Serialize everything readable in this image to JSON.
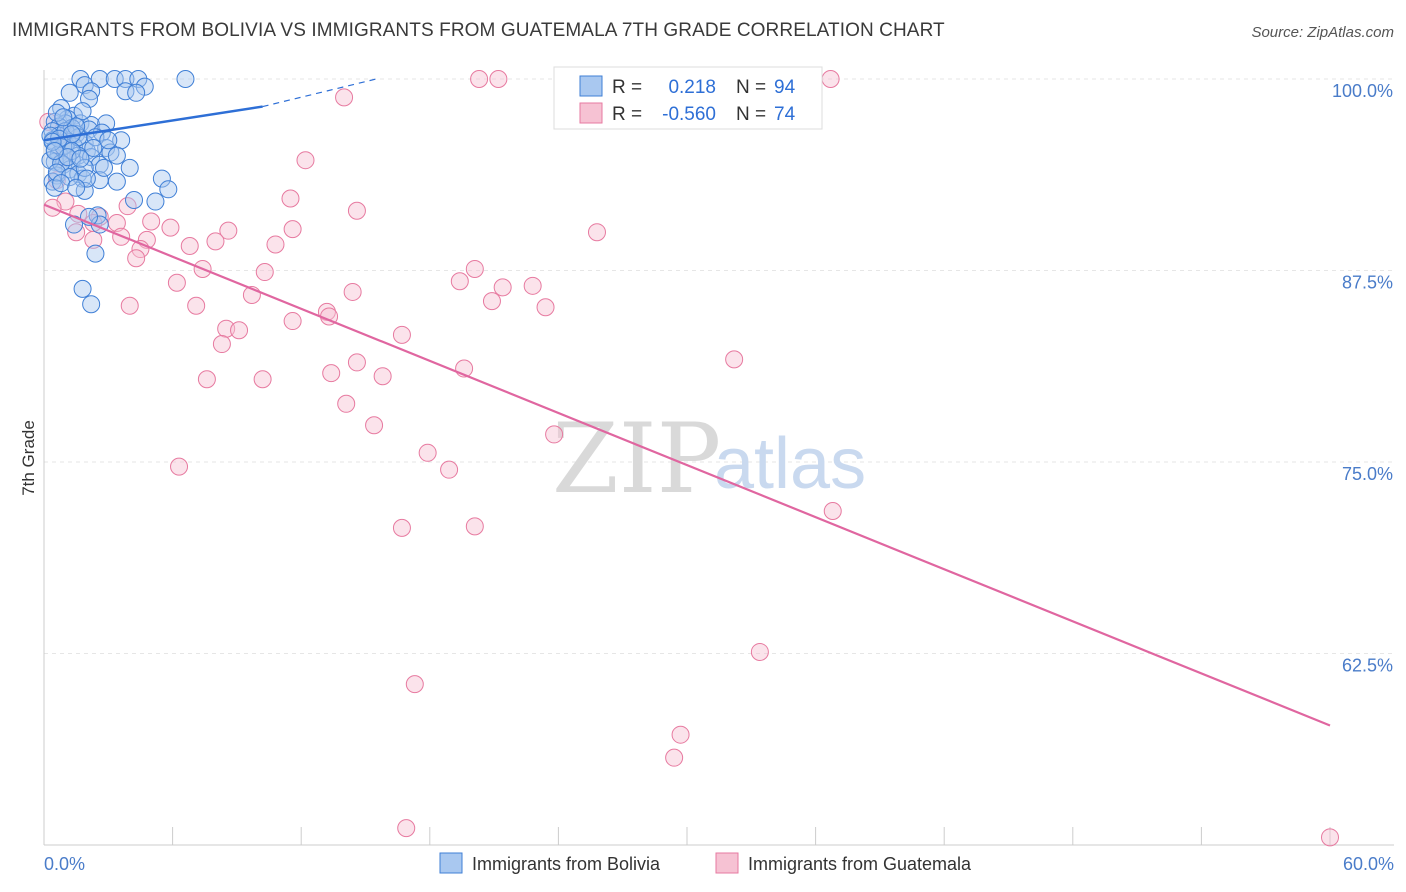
{
  "header": {
    "title": "IMMIGRANTS FROM BOLIVIA VS IMMIGRANTS FROM GUATEMALA 7TH GRADE CORRELATION CHART",
    "source": "Source: ZipAtlas.com"
  },
  "watermark": {
    "zip": "ZIP",
    "atlas": "atlas"
  },
  "colors": {
    "bolivia_stroke": "#3f7fd6",
    "bolivia_fill": "#a9c8f0",
    "guatemala_stroke": "#e77aa0",
    "guatemala_fill": "#f6c2d3",
    "bolivia_line": "#2e6fd6",
    "guatemala_line": "#e066a0"
  },
  "chart_data": {
    "type": "scatter",
    "xlabel": "",
    "ylabel": "7th Grade",
    "xlim": [
      0,
      60
    ],
    "ylim": [
      50,
      101
    ],
    "x_tick_labels": [
      "0.0%",
      "60.0%"
    ],
    "y_ticks": [
      62.5,
      75.0,
      87.5,
      100.0
    ],
    "y_tick_labels": [
      "62.5%",
      "75.0%",
      "87.5%",
      "100.0%"
    ],
    "legend": {
      "placement": "top-center",
      "entries": [
        {
          "r_label": "R =",
          "r_value": "0.218",
          "n_label": "N =",
          "n_value": "94"
        },
        {
          "r_label": "R =",
          "r_value": "-0.560",
          "n_label": "N =",
          "n_value": "74"
        }
      ]
    },
    "bottom_legend": [
      "Immigrants from Bolivia",
      "Immigrants from Guatemala"
    ],
    "series": [
      {
        "name": "Immigrants from Bolivia",
        "trend": {
          "x": [
            0,
            10.2
          ],
          "y": [
            96.0,
            98.2
          ],
          "dashed_to": [
            15.5,
            100.0
          ]
        },
        "points": [
          [
            1.7,
            100
          ],
          [
            1.9,
            99.6
          ],
          [
            2.6,
            100
          ],
          [
            2.2,
            99.2
          ],
          [
            3.3,
            100
          ],
          [
            3.8,
            100
          ],
          [
            4.4,
            100
          ],
          [
            4.7,
            99.5
          ],
          [
            6.6,
            100
          ],
          [
            3.8,
            99.2
          ],
          [
            4.3,
            99.1
          ],
          [
            1.2,
            99.1
          ],
          [
            2.1,
            98.7
          ],
          [
            0.8,
            98.1
          ],
          [
            1.4,
            97.6
          ],
          [
            1.1,
            97.4
          ],
          [
            1.7,
            97.1
          ],
          [
            0.5,
            97.2
          ],
          [
            1.0,
            97.1
          ],
          [
            2.2,
            97.0
          ],
          [
            2.9,
            97.1
          ],
          [
            0.7,
            96.9
          ],
          [
            1.3,
            96.8
          ],
          [
            2.1,
            96.7
          ],
          [
            0.4,
            96.6
          ],
          [
            2.7,
            96.5
          ],
          [
            1.5,
            96.4
          ],
          [
            0.7,
            96.3
          ],
          [
            0.4,
            96.0
          ],
          [
            1.1,
            95.9
          ],
          [
            3.6,
            96.0
          ],
          [
            1.9,
            95.8
          ],
          [
            1.0,
            95.7
          ],
          [
            1.4,
            95.6
          ],
          [
            2.9,
            95.5
          ],
          [
            0.5,
            95.4
          ],
          [
            2.0,
            95.3
          ],
          [
            3.1,
            95.2
          ],
          [
            0.7,
            95.1
          ],
          [
            1.6,
            95.0
          ],
          [
            3.4,
            95.0
          ],
          [
            2.2,
            94.9
          ],
          [
            1.3,
            94.7
          ],
          [
            0.5,
            94.6
          ],
          [
            2.6,
            94.4
          ],
          [
            0.9,
            94.4
          ],
          [
            4.0,
            94.2
          ],
          [
            1.2,
            94.1
          ],
          [
            1.6,
            93.8
          ],
          [
            0.6,
            93.7
          ],
          [
            5.5,
            93.5
          ],
          [
            1.8,
            93.5
          ],
          [
            0.4,
            93.3
          ],
          [
            2.6,
            93.4
          ],
          [
            3.4,
            93.3
          ],
          [
            0.5,
            92.9
          ],
          [
            1.9,
            92.7
          ],
          [
            4.2,
            92.1
          ],
          [
            5.2,
            92.0
          ],
          [
            5.8,
            92.8
          ],
          [
            1.4,
            90.5
          ],
          [
            2.5,
            91.1
          ],
          [
            2.6,
            90.5
          ],
          [
            2.4,
            88.6
          ],
          [
            1.8,
            86.3
          ],
          [
            2.2,
            85.3
          ],
          [
            0.6,
            97.8
          ],
          [
            1.8,
            97.9
          ],
          [
            0.3,
            96.3
          ],
          [
            1.6,
            96.2
          ],
          [
            0.9,
            95.6
          ],
          [
            1.3,
            95.3
          ],
          [
            0.3,
            94.7
          ],
          [
            0.8,
            94.5
          ],
          [
            1.9,
            94.2
          ],
          [
            0.6,
            93.9
          ],
          [
            1.2,
            93.6
          ],
          [
            2.0,
            93.5
          ],
          [
            1.0,
            96.6
          ],
          [
            0.7,
            96.1
          ],
          [
            1.5,
            96.9
          ],
          [
            2.4,
            96.2
          ],
          [
            3.0,
            96.0
          ],
          [
            0.4,
            95.9
          ],
          [
            1.1,
            94.9
          ],
          [
            2.3,
            95.5
          ],
          [
            0.9,
            97.5
          ],
          [
            1.3,
            96.4
          ],
          [
            0.5,
            95.3
          ],
          [
            1.7,
            94.8
          ],
          [
            2.8,
            94.2
          ],
          [
            0.8,
            93.2
          ],
          [
            1.5,
            92.9
          ],
          [
            2.1,
            91.0
          ]
        ]
      },
      {
        "name": "Immigrants from Guatemala",
        "trend": {
          "x": [
            0,
            60
          ],
          "y": [
            91.8,
            57.8
          ]
        },
        "points": [
          [
            20.3,
            100
          ],
          [
            21.2,
            100
          ],
          [
            36.7,
            100
          ],
          [
            14.0,
            98.8
          ],
          [
            0.2,
            97.2
          ],
          [
            1.1,
            96.4
          ],
          [
            0.9,
            94.9
          ],
          [
            12.2,
            94.7
          ],
          [
            11.5,
            92.2
          ],
          [
            1.0,
            92.0
          ],
          [
            14.6,
            91.4
          ],
          [
            0.4,
            91.6
          ],
          [
            1.6,
            91.2
          ],
          [
            2.6,
            91.0
          ],
          [
            3.4,
            90.6
          ],
          [
            2.3,
            90.6
          ],
          [
            3.9,
            91.7
          ],
          [
            5.0,
            90.7
          ],
          [
            5.9,
            90.3
          ],
          [
            8.6,
            90.1
          ],
          [
            11.6,
            90.2
          ],
          [
            25.8,
            90.0
          ],
          [
            2.3,
            89.5
          ],
          [
            3.6,
            89.7
          ],
          [
            4.8,
            89.5
          ],
          [
            6.8,
            89.1
          ],
          [
            8.0,
            89.4
          ],
          [
            10.8,
            89.2
          ],
          [
            4.5,
            88.9
          ],
          [
            4.3,
            88.3
          ],
          [
            20.1,
            87.6
          ],
          [
            7.4,
            87.6
          ],
          [
            10.3,
            87.4
          ],
          [
            6.2,
            86.7
          ],
          [
            19.4,
            86.8
          ],
          [
            21.4,
            86.4
          ],
          [
            14.4,
            86.1
          ],
          [
            22.8,
            86.5
          ],
          [
            9.7,
            85.9
          ],
          [
            4.0,
            85.2
          ],
          [
            7.1,
            85.2
          ],
          [
            20.9,
            85.5
          ],
          [
            23.4,
            85.1
          ],
          [
            13.2,
            84.8
          ],
          [
            13.3,
            84.5
          ],
          [
            11.6,
            84.2
          ],
          [
            8.5,
            83.7
          ],
          [
            9.1,
            83.6
          ],
          [
            16.7,
            83.3
          ],
          [
            8.3,
            82.7
          ],
          [
            14.6,
            81.5
          ],
          [
            19.6,
            81.1
          ],
          [
            32.2,
            81.7
          ],
          [
            13.4,
            80.8
          ],
          [
            15.8,
            80.6
          ],
          [
            7.6,
            80.4
          ],
          [
            10.2,
            80.4
          ],
          [
            14.1,
            78.8
          ],
          [
            15.4,
            77.4
          ],
          [
            23.8,
            76.8
          ],
          [
            17.9,
            75.6
          ],
          [
            18.9,
            74.5
          ],
          [
            6.3,
            74.7
          ],
          [
            36.8,
            71.8
          ],
          [
            16.7,
            70.7
          ],
          [
            20.1,
            70.8
          ],
          [
            33.4,
            62.6
          ],
          [
            17.3,
            60.5
          ],
          [
            29.7,
            57.2
          ],
          [
            29.4,
            55.7
          ],
          [
            16.9,
            51.1
          ],
          [
            60.0,
            50.5
          ],
          [
            1.5,
            90.0
          ],
          [
            0.6,
            93.4
          ]
        ]
      }
    ]
  }
}
